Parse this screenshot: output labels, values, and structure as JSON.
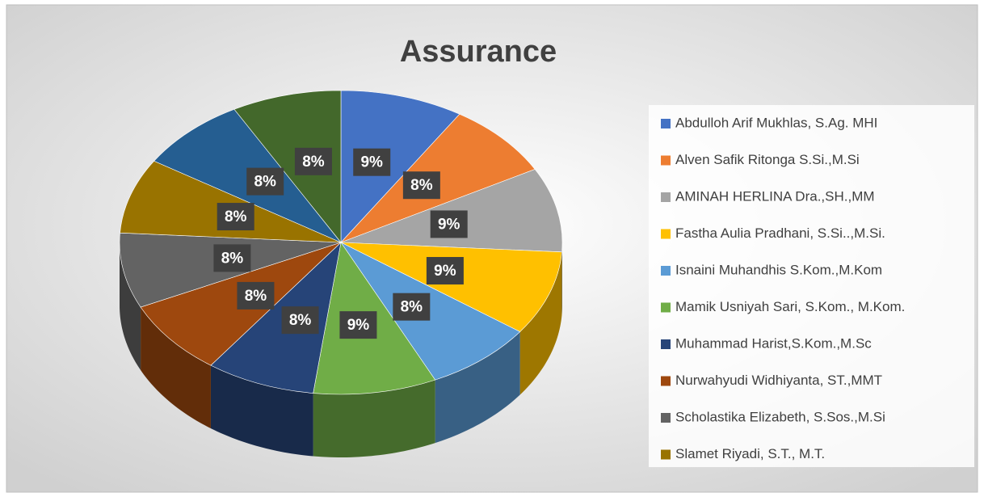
{
  "chart_data": {
    "type": "pie3d",
    "title": "Assurance",
    "categories": [
      "Abdulloh Arif Mukhlas, S.Ag. MHI",
      "Alven Safik Ritonga S.Si.,M.Si",
      "AMINAH HERLINA Dra.,SH.,MM",
      "Fastha Aulia Pradhani, S.Si..,M.Si.",
      "Isnaini Muhandhis S.Kom.,M.Kom",
      "Mamik Usniyah Sari, S.Kom., M.Kom.",
      "Muhammad Harist,S.Kom.,M.Sc",
      "Nurwahyudi Widhiyanta, ST.,MMT",
      "Scholastika Elizabeth, S.Sos.,M.Si",
      "Slamet Riyadi, S.T., M.T.",
      null,
      null
    ],
    "values": [
      9,
      8,
      9,
      9,
      8,
      9,
      8,
      8,
      8,
      8,
      8,
      8
    ],
    "value_labels": [
      "9%",
      "8%",
      "9%",
      "9%",
      "8%",
      "9%",
      "8%",
      "8%",
      "8%",
      "8%",
      "8%",
      "8%"
    ],
    "colors": [
      "#4472c4",
      "#ed7d31",
      "#a5a5a5",
      "#ffc000",
      "#5b9bd5",
      "#70ad47",
      "#264478",
      "#9e480e",
      "#636363",
      "#997300",
      "#255e91",
      "#43682b"
    ],
    "legend": "right"
  }
}
